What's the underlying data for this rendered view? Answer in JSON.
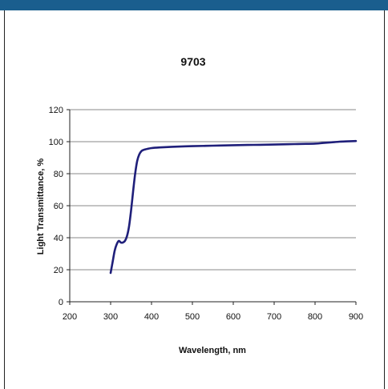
{
  "chart_data": {
    "type": "line",
    "title": "9703",
    "xlabel": "Wavelength, nm",
    "ylabel": "Light Transmittance, %",
    "xlim": [
      200,
      900
    ],
    "ylim": [
      0,
      120
    ],
    "x_ticks": [
      "200",
      "300",
      "400",
      "500",
      "600",
      "700",
      "800",
      "900"
    ],
    "y_ticks": [
      "0",
      "20",
      "40",
      "60",
      "80",
      "100",
      "120"
    ],
    "grid": "horizontal",
    "legend": "none",
    "series": [
      {
        "color": "#1f1f7a",
        "x": [
          300,
          305,
          310,
          315,
          320,
          325,
          330,
          335,
          340,
          345,
          350,
          355,
          360,
          365,
          370,
          375,
          380,
          385,
          390,
          400,
          420,
          450,
          500,
          550,
          600,
          650,
          700,
          750,
          800,
          820,
          840,
          860,
          880,
          900
        ],
        "y": [
          18,
          25,
          32,
          36,
          38,
          37,
          37,
          38,
          41,
          47,
          57,
          69,
          80,
          88,
          92,
          94,
          94.8,
          95.2,
          95.5,
          96,
          96.4,
          96.8,
          97.2,
          97.5,
          97.8,
          98,
          98.2,
          98.5,
          98.8,
          99.2,
          99.6,
          100,
          100.2,
          100.4
        ]
      }
    ]
  }
}
